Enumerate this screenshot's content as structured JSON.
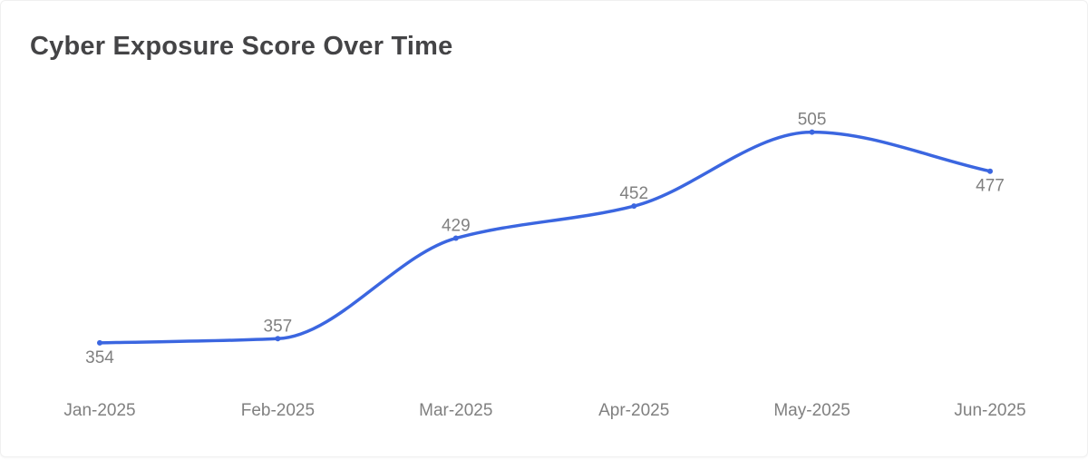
{
  "header": {
    "title": "Cyber Exposure Score Over Time"
  },
  "colors": {
    "line": "#3b66e0",
    "data_label": "#808080",
    "tick_label": "#808080",
    "title": "#444446"
  },
  "chart_data": {
    "type": "line",
    "title": "Cyber Exposure Score Over Time",
    "xlabel": "",
    "ylabel": "",
    "categories": [
      "Jan-2025",
      "Feb-2025",
      "Mar-2025",
      "Apr-2025",
      "May-2025",
      "Jun-2025"
    ],
    "series": [
      {
        "values": [
          354,
          357,
          429,
          452,
          505,
          477
        ],
        "smooth": true
      }
    ],
    "data_labels": true,
    "ylim": [
      300,
      560
    ],
    "grid": false,
    "legend": "none",
    "y_axis_visible": false
  }
}
